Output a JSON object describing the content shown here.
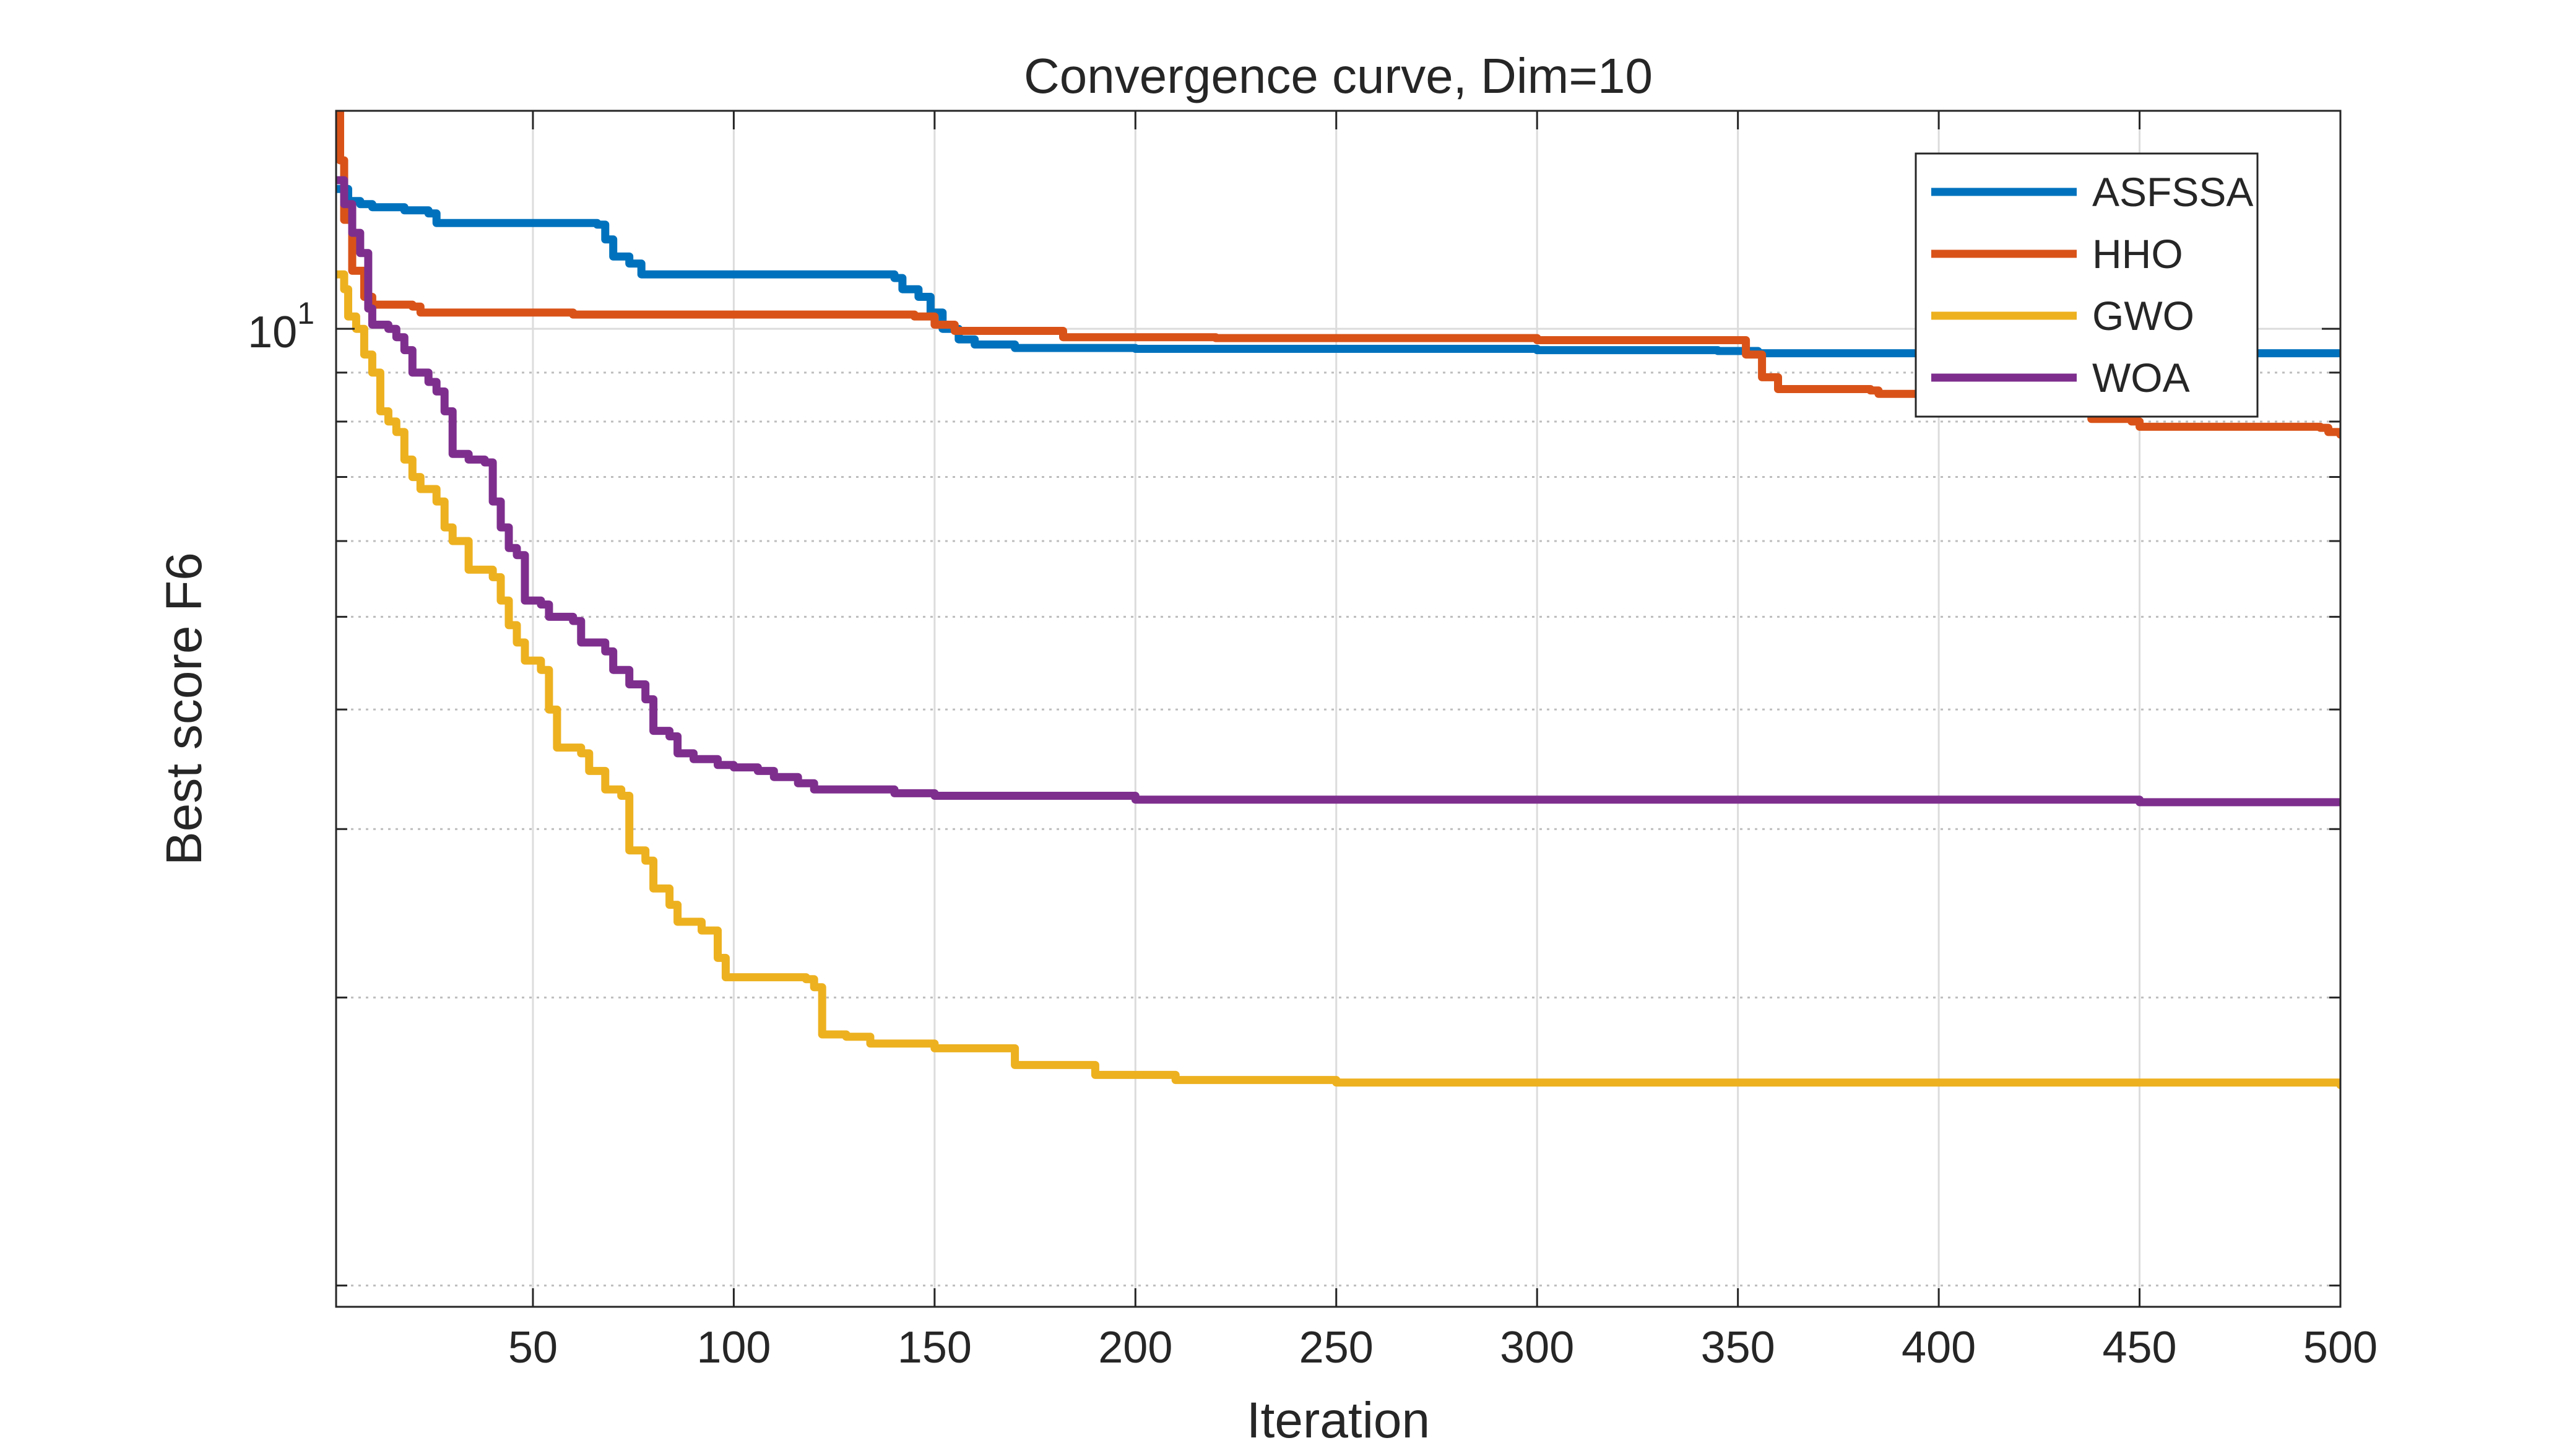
{
  "chart_data": {
    "type": "line",
    "title": "Convergence curve, Dim=10",
    "xlabel": "Iteration",
    "ylabel": "Best score F6",
    "x_range": [
      1,
      500
    ],
    "y_range": [
      0.95,
      16.9
    ],
    "y_scale": "log",
    "x_ticks": [
      50,
      100,
      150,
      200,
      250,
      300,
      350,
      400,
      450,
      500
    ],
    "x_tick_labels": [
      "50",
      "100",
      "150",
      "200",
      "250",
      "300",
      "350",
      "400",
      "450",
      "500"
    ],
    "y_major_tick": 10,
    "y_major_tick_label": {
      "base": "10",
      "exp": "1"
    },
    "y_minor_ticks": [
      1,
      2,
      3,
      4,
      5,
      6,
      7,
      8,
      9
    ],
    "grid": true,
    "legend_position": "top-right",
    "series": [
      {
        "name": "ASFSSA",
        "color": "#0072BD",
        "points": [
          [
            1,
            14.0
          ],
          [
            4,
            13.6
          ],
          [
            7,
            13.5
          ],
          [
            10,
            13.4
          ],
          [
            18,
            13.3
          ],
          [
            24,
            13.2
          ],
          [
            26,
            12.9
          ],
          [
            40,
            12.9
          ],
          [
            66,
            12.85
          ],
          [
            68,
            12.4
          ],
          [
            70,
            11.9
          ],
          [
            74,
            11.7
          ],
          [
            77,
            11.4
          ],
          [
            90,
            11.4
          ],
          [
            140,
            11.3
          ],
          [
            142,
            11.0
          ],
          [
            146,
            10.8
          ],
          [
            149,
            10.4
          ],
          [
            152,
            10.0
          ],
          [
            156,
            9.75
          ],
          [
            160,
            9.63
          ],
          [
            170,
            9.55
          ],
          [
            200,
            9.53
          ],
          [
            300,
            9.5
          ],
          [
            345,
            9.48
          ],
          [
            355,
            9.43
          ],
          [
            400,
            9.43
          ],
          [
            500,
            9.43
          ]
        ]
      },
      {
        "name": "HHO",
        "color": "#D95319",
        "points": [
          [
            1,
            16.9
          ],
          [
            2,
            15.0
          ],
          [
            3,
            13.0
          ],
          [
            5,
            11.5
          ],
          [
            8,
            10.8
          ],
          [
            10,
            10.6
          ],
          [
            20,
            10.55
          ],
          [
            22,
            10.4
          ],
          [
            50,
            10.4
          ],
          [
            60,
            10.35
          ],
          [
            120,
            10.35
          ],
          [
            145,
            10.3
          ],
          [
            150,
            10.1
          ],
          [
            155,
            9.95
          ],
          [
            175,
            9.95
          ],
          [
            182,
            9.8
          ],
          [
            220,
            9.78
          ],
          [
            300,
            9.73
          ],
          [
            350,
            9.73
          ],
          [
            352,
            9.4
          ],
          [
            356,
            8.9
          ],
          [
            360,
            8.65
          ],
          [
            383,
            8.62
          ],
          [
            385,
            8.55
          ],
          [
            430,
            8.52
          ],
          [
            433,
            8.2
          ],
          [
            438,
            8.05
          ],
          [
            448,
            8.0
          ],
          [
            450,
            7.9
          ],
          [
            495,
            7.88
          ],
          [
            497,
            7.8
          ],
          [
            500,
            7.75
          ]
        ]
      },
      {
        "name": "GWO",
        "color": "#EDB120",
        "points": [
          [
            1,
            11.4
          ],
          [
            3,
            11.0
          ],
          [
            4,
            10.3
          ],
          [
            6,
            10.0
          ],
          [
            8,
            9.4
          ],
          [
            10,
            9.0
          ],
          [
            12,
            8.2
          ],
          [
            14,
            8.0
          ],
          [
            16,
            7.8
          ],
          [
            18,
            7.3
          ],
          [
            20,
            7.0
          ],
          [
            22,
            6.8
          ],
          [
            26,
            6.6
          ],
          [
            28,
            6.2
          ],
          [
            30,
            6.0
          ],
          [
            34,
            5.6
          ],
          [
            40,
            5.5
          ],
          [
            42,
            5.2
          ],
          [
            44,
            4.9
          ],
          [
            46,
            4.7
          ],
          [
            48,
            4.5
          ],
          [
            52,
            4.4
          ],
          [
            54,
            4.0
          ],
          [
            56,
            3.65
          ],
          [
            62,
            3.6
          ],
          [
            64,
            3.45
          ],
          [
            68,
            3.3
          ],
          [
            72,
            3.25
          ],
          [
            74,
            2.85
          ],
          [
            78,
            2.78
          ],
          [
            80,
            2.6
          ],
          [
            84,
            2.5
          ],
          [
            86,
            2.4
          ],
          [
            92,
            2.35
          ],
          [
            96,
            2.2
          ],
          [
            98,
            2.1
          ],
          [
            118,
            2.09
          ],
          [
            120,
            2.05
          ],
          [
            122,
            1.83
          ],
          [
            128,
            1.82
          ],
          [
            134,
            1.79
          ],
          [
            150,
            1.77
          ],
          [
            170,
            1.7
          ],
          [
            190,
            1.66
          ],
          [
            210,
            1.64
          ],
          [
            250,
            1.63
          ],
          [
            500,
            1.62
          ]
        ]
      },
      {
        "name": "WOA",
        "color": "#7E2F8E",
        "points": [
          [
            1,
            14.3
          ],
          [
            3,
            13.5
          ],
          [
            5,
            12.6
          ],
          [
            7,
            12.0
          ],
          [
            9,
            10.5
          ],
          [
            10,
            10.1
          ],
          [
            14,
            10.0
          ],
          [
            16,
            9.8
          ],
          [
            18,
            9.5
          ],
          [
            20,
            9.0
          ],
          [
            24,
            8.8
          ],
          [
            26,
            8.6
          ],
          [
            28,
            8.2
          ],
          [
            30,
            7.4
          ],
          [
            34,
            7.3
          ],
          [
            38,
            7.25
          ],
          [
            40,
            6.6
          ],
          [
            42,
            6.2
          ],
          [
            44,
            5.9
          ],
          [
            46,
            5.8
          ],
          [
            48,
            5.2
          ],
          [
            52,
            5.15
          ],
          [
            54,
            5.0
          ],
          [
            60,
            4.95
          ],
          [
            62,
            4.7
          ],
          [
            68,
            4.6
          ],
          [
            70,
            4.4
          ],
          [
            74,
            4.25
          ],
          [
            78,
            4.1
          ],
          [
            80,
            3.8
          ],
          [
            84,
            3.75
          ],
          [
            86,
            3.6
          ],
          [
            90,
            3.55
          ],
          [
            96,
            3.5
          ],
          [
            100,
            3.48
          ],
          [
            106,
            3.45
          ],
          [
            110,
            3.4
          ],
          [
            116,
            3.35
          ],
          [
            120,
            3.3
          ],
          [
            140,
            3.27
          ],
          [
            150,
            3.25
          ],
          [
            200,
            3.22
          ],
          [
            300,
            3.22
          ],
          [
            400,
            3.22
          ],
          [
            450,
            3.2
          ],
          [
            500,
            3.2
          ]
        ]
      }
    ]
  }
}
